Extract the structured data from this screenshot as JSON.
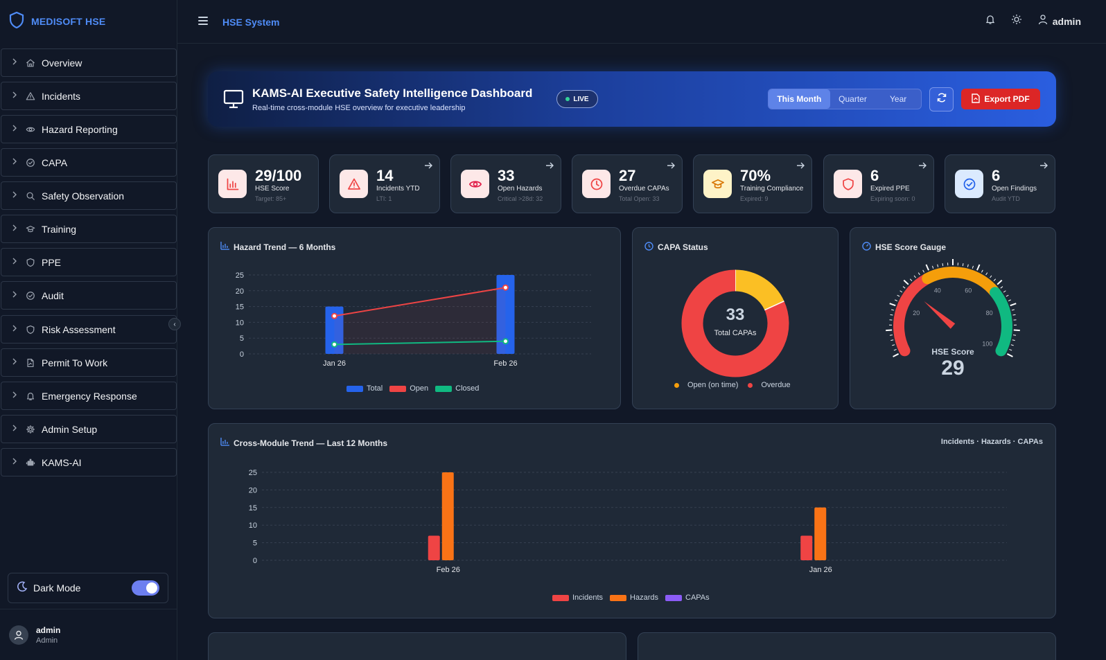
{
  "brand": {
    "name": "MEDISOFT HSE"
  },
  "sidebar": {
    "items": [
      {
        "label": "Overview",
        "icon": "home-icon"
      },
      {
        "label": "Incidents",
        "icon": "warning-icon"
      },
      {
        "label": "Hazard Reporting",
        "icon": "eye-icon"
      },
      {
        "label": "CAPA",
        "icon": "check-circle-icon"
      },
      {
        "label": "Safety Observation",
        "icon": "search-icon"
      },
      {
        "label": "Training",
        "icon": "graduation-cap-icon"
      },
      {
        "label": "PPE",
        "icon": "shield-icon"
      },
      {
        "label": "Audit",
        "icon": "check-circle-icon"
      },
      {
        "label": "Risk Assessment",
        "icon": "shield-icon"
      },
      {
        "label": "Permit To Work",
        "icon": "file-signature-icon"
      },
      {
        "label": "Emergency Response",
        "icon": "bell-icon"
      },
      {
        "label": "Admin Setup",
        "icon": "gear-icon"
      },
      {
        "label": "KAMS-AI",
        "icon": "robot-icon"
      }
    ],
    "dark_mode_label": "Dark Mode",
    "dark_mode_on": true,
    "user": {
      "name": "admin",
      "role": "Admin"
    }
  },
  "topbar": {
    "title": "HSE System",
    "user": "admin"
  },
  "hero": {
    "title": "KAMS-AI Executive Safety Intelligence Dashboard",
    "subtitle": "Real-time cross-module HSE overview for executive leadership",
    "badge": "LIVE",
    "periods": [
      "This Month",
      "Quarter",
      "Year"
    ],
    "active_period": "This Month",
    "export_label": "Export PDF"
  },
  "kpis": [
    {
      "value": "29/100",
      "label": "HSE Score",
      "sub": "Target: 85+",
      "icon": "bar-chart-icon",
      "arrow": false
    },
    {
      "value": "14",
      "label": "Incidents YTD",
      "sub": "LTI: 1",
      "icon": "warning-icon",
      "arrow": true
    },
    {
      "value": "33",
      "label": "Open Hazards",
      "sub": "Critical >28d: 32",
      "icon": "eye-icon",
      "arrow": true
    },
    {
      "value": "27",
      "label": "Overdue CAPAs",
      "sub": "Total Open: 33",
      "icon": "clock-icon",
      "arrow": true
    },
    {
      "value": "70%",
      "label": "Training Compliance",
      "sub": "Expired: 9",
      "icon": "graduation-cap-icon",
      "arrow": true
    },
    {
      "value": "6",
      "label": "Expired PPE",
      "sub": "Expiring soon: 0",
      "icon": "shield-icon",
      "arrow": true
    },
    {
      "value": "6",
      "label": "Open Findings",
      "sub": "Audit YTD",
      "icon": "check-circle-icon",
      "arrow": true
    }
  ],
  "panels": {
    "hazard_trend": {
      "title": "Hazard Trend — 6 Months",
      "legend": [
        "Total",
        "Open",
        "Closed"
      ]
    },
    "capa_status": {
      "title": "CAPA Status",
      "center_value": "33",
      "center_label": "Total CAPAs",
      "legend": [
        "Open (on time)",
        "Overdue"
      ]
    },
    "gauge": {
      "title": "HSE Score Gauge",
      "label": "HSE Score",
      "value": "29"
    },
    "cross_module": {
      "title": "Cross-Module Trend — Last 12 Months",
      "note": "Incidents · Hazards · CAPAs",
      "legend": [
        "Incidents",
        "Hazards",
        "CAPAs"
      ]
    }
  },
  "colors": {
    "accent": "#4f8cf7",
    "danger": "#ef4444",
    "warning": "#f59e0b",
    "success": "#10b981",
    "orange": "#f97316",
    "purple": "#8b5cf6"
  },
  "chart_data": [
    {
      "type": "bar",
      "title": "Hazard Trend — 6 Months",
      "categories": [
        "Jan 26",
        "Feb 26"
      ],
      "ylim": [
        0,
        25
      ],
      "yticks": [
        0,
        5,
        10,
        15,
        20,
        25
      ],
      "grid": true,
      "legend": "bottom",
      "series": [
        {
          "name": "Total",
          "kind": "bar",
          "values": [
            15,
            25
          ]
        },
        {
          "name": "Open",
          "kind": "line",
          "values": [
            12,
            21
          ]
        },
        {
          "name": "Closed",
          "kind": "line",
          "values": [
            3,
            4
          ]
        }
      ]
    },
    {
      "type": "pie",
      "title": "CAPA Status",
      "categories": [
        "Open (on time)",
        "Overdue"
      ],
      "values": [
        6,
        27
      ],
      "donut": true,
      "legend": "bottom"
    },
    {
      "type": "gauge",
      "title": "HSE Score Gauge",
      "value": 29,
      "range": [
        0,
        100
      ],
      "tick_labels": [
        20,
        40,
        60,
        80,
        100
      ]
    },
    {
      "type": "bar",
      "title": "Cross-Module Trend — Last 12 Months",
      "categories": [
        "Feb 26",
        "Jan 26"
      ],
      "ylim": [
        0,
        25
      ],
      "yticks": [
        0,
        5,
        10,
        15,
        20,
        25
      ],
      "grid": true,
      "legend": "bottom",
      "series": [
        {
          "name": "Incidents",
          "values": [
            7,
            7
          ]
        },
        {
          "name": "Hazards",
          "values": [
            25,
            15
          ]
        },
        {
          "name": "CAPAs",
          "values": [
            0,
            0
          ]
        }
      ]
    }
  ]
}
